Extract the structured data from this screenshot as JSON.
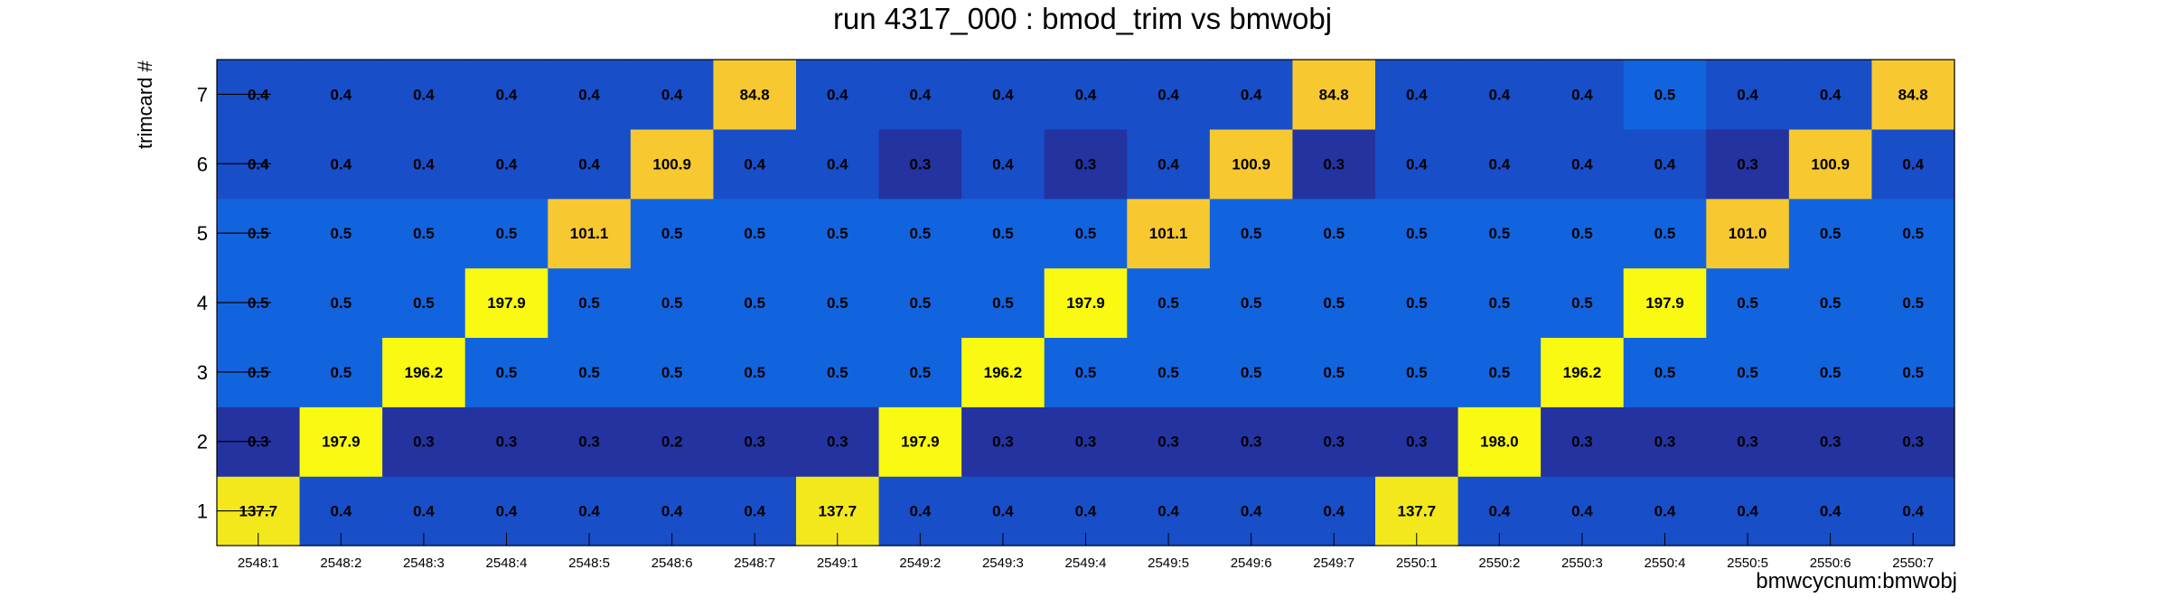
{
  "chart_data": {
    "type": "heatmap",
    "title": "run 4317_000 : bmod_trim vs bmwobj",
    "xlabel": "bmwcycnum:bmwobj",
    "ylabel": "trimcard #",
    "x_categories": [
      "2548:1",
      "2548:2",
      "2548:3",
      "2548:4",
      "2548:5",
      "2548:6",
      "2548:7",
      "2549:1",
      "2549:2",
      "2549:3",
      "2549:4",
      "2549:5",
      "2549:6",
      "2549:7",
      "2550:1",
      "2550:2",
      "2550:3",
      "2550:4",
      "2550:5",
      "2550:6",
      "2550:7"
    ],
    "y_categories": [
      "1",
      "2",
      "3",
      "4",
      "5",
      "6",
      "7"
    ],
    "values": [
      [
        "137.7",
        "0.4",
        "0.4",
        "0.4",
        "0.4",
        "0.4",
        "0.4",
        "137.7",
        "0.4",
        "0.4",
        "0.4",
        "0.4",
        "0.4",
        "0.4",
        "137.7",
        "0.4",
        "0.4",
        "0.4",
        "0.4",
        "0.4",
        "0.4"
      ],
      [
        "0.3",
        "197.9",
        "0.3",
        "0.3",
        "0.3",
        "0.2",
        "0.3",
        "0.3",
        "197.9",
        "0.3",
        "0.3",
        "0.3",
        "0.3",
        "0.3",
        "0.3",
        "198.0",
        "0.3",
        "0.3",
        "0.3",
        "0.3",
        "0.3"
      ],
      [
        "0.5",
        "0.5",
        "196.2",
        "0.5",
        "0.5",
        "0.5",
        "0.5",
        "0.5",
        "0.5",
        "196.2",
        "0.5",
        "0.5",
        "0.5",
        "0.5",
        "0.5",
        "0.5",
        "196.2",
        "0.5",
        "0.5",
        "0.5",
        "0.5"
      ],
      [
        "0.5",
        "0.5",
        "0.5",
        "197.9",
        "0.5",
        "0.5",
        "0.5",
        "0.5",
        "0.5",
        "0.5",
        "197.9",
        "0.5",
        "0.5",
        "0.5",
        "0.5",
        "0.5",
        "0.5",
        "197.9",
        "0.5",
        "0.5",
        "0.5"
      ],
      [
        "0.5",
        "0.5",
        "0.5",
        "0.5",
        "101.1",
        "0.5",
        "0.5",
        "0.5",
        "0.5",
        "0.5",
        "0.5",
        "101.1",
        "0.5",
        "0.5",
        "0.5",
        "0.5",
        "0.5",
        "0.5",
        "101.0",
        "0.5",
        "0.5"
      ],
      [
        "0.4",
        "0.4",
        "0.4",
        "0.4",
        "0.4",
        "100.9",
        "0.4",
        "0.4",
        "0.3",
        "0.4",
        "0.3",
        "0.4",
        "100.9",
        "0.3",
        "0.4",
        "0.4",
        "0.4",
        "0.4",
        "0.3",
        "100.9",
        "0.4"
      ],
      [
        "0.4",
        "0.4",
        "0.4",
        "0.4",
        "0.4",
        "0.4",
        "84.8",
        "0.4",
        "0.4",
        "0.4",
        "0.4",
        "0.4",
        "0.4",
        "84.8",
        "0.4",
        "0.4",
        "0.4",
        "0.5",
        "0.4",
        "0.4",
        "84.8"
      ]
    ],
    "colors": {
      "0.2": "#24339f",
      "0.3": "#24339f",
      "0.4": "#184ec8",
      "0.5": "#1264de",
      "84.8": "#f7c830",
      "100.9": "#f7c830",
      "101.0": "#f7c830",
      "101.1": "#f7c830",
      "137.7": "#f3e81c",
      "196.2": "#f9f911",
      "197.9": "#f9f911",
      "198.0": "#f9f911"
    },
    "grid": false,
    "legend": "none"
  }
}
